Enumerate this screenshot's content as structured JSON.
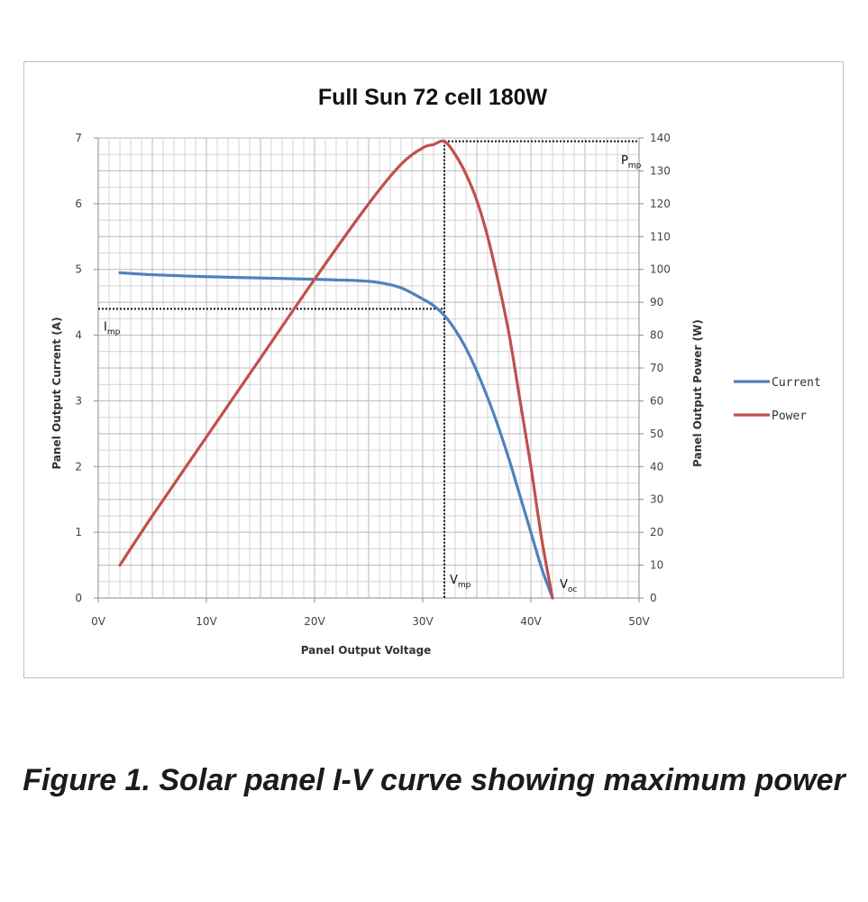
{
  "caption": "Figure 1. Solar panel I-V curve showing maximum power",
  "chart_data": {
    "type": "line",
    "title": "Full Sun 72 cell 180W",
    "xlabel": "Panel Output Voltage",
    "ylabel": "Panel Output Current (A)",
    "y2label": "Panel Output Power (W)",
    "xlim": [
      0,
      50
    ],
    "ylim": [
      0,
      7
    ],
    "y2lim": [
      0,
      140
    ],
    "x_tick_labels": [
      "0V",
      "10V",
      "20V",
      "30V",
      "40V",
      "50V"
    ],
    "x_tick_values": [
      0,
      10,
      20,
      30,
      40,
      50
    ],
    "y_ticks": [
      0,
      1,
      2,
      3,
      4,
      5,
      6,
      7
    ],
    "y2_ticks": [
      0,
      10,
      20,
      30,
      40,
      50,
      60,
      70,
      80,
      90,
      100,
      110,
      120,
      130,
      140
    ],
    "grid": true,
    "legend_position": "right",
    "series": [
      {
        "name": "Current",
        "axis": "left",
        "color": "#4f81bd",
        "x": [
          2,
          5,
          10,
          15,
          20,
          22,
          24,
          26,
          28,
          30,
          31,
          32,
          33,
          34,
          35,
          36,
          37,
          38,
          39,
          40,
          41,
          42
        ],
        "y": [
          4.95,
          4.92,
          4.89,
          4.87,
          4.85,
          4.84,
          4.83,
          4.8,
          4.72,
          4.55,
          4.45,
          4.3,
          4.08,
          3.8,
          3.45,
          3.05,
          2.6,
          2.1,
          1.55,
          1.0,
          0.45,
          0.0
        ]
      },
      {
        "name": "Power",
        "axis": "right",
        "color": "#c0504d",
        "x": [
          2,
          5,
          10,
          15,
          20,
          25,
          28,
          30,
          31,
          32,
          33,
          34,
          35,
          36,
          37,
          38,
          39,
          40,
          41,
          42
        ],
        "y": [
          10,
          25,
          49,
          73,
          97,
          120,
          132,
          137,
          138,
          139,
          135,
          129,
          121,
          110,
          96,
          80,
          60,
          40,
          18,
          0
        ]
      }
    ],
    "annotations": [
      {
        "main": "P",
        "sub": "mp",
        "x": 32,
        "y2": 139
      },
      {
        "main": "I",
        "sub": "mp",
        "x": 32,
        "y": 4.4
      },
      {
        "main": "V",
        "sub": "mp",
        "x": 32,
        "y": 0
      },
      {
        "main": "V",
        "sub": "oc",
        "x": 42,
        "y": 0
      }
    ]
  }
}
